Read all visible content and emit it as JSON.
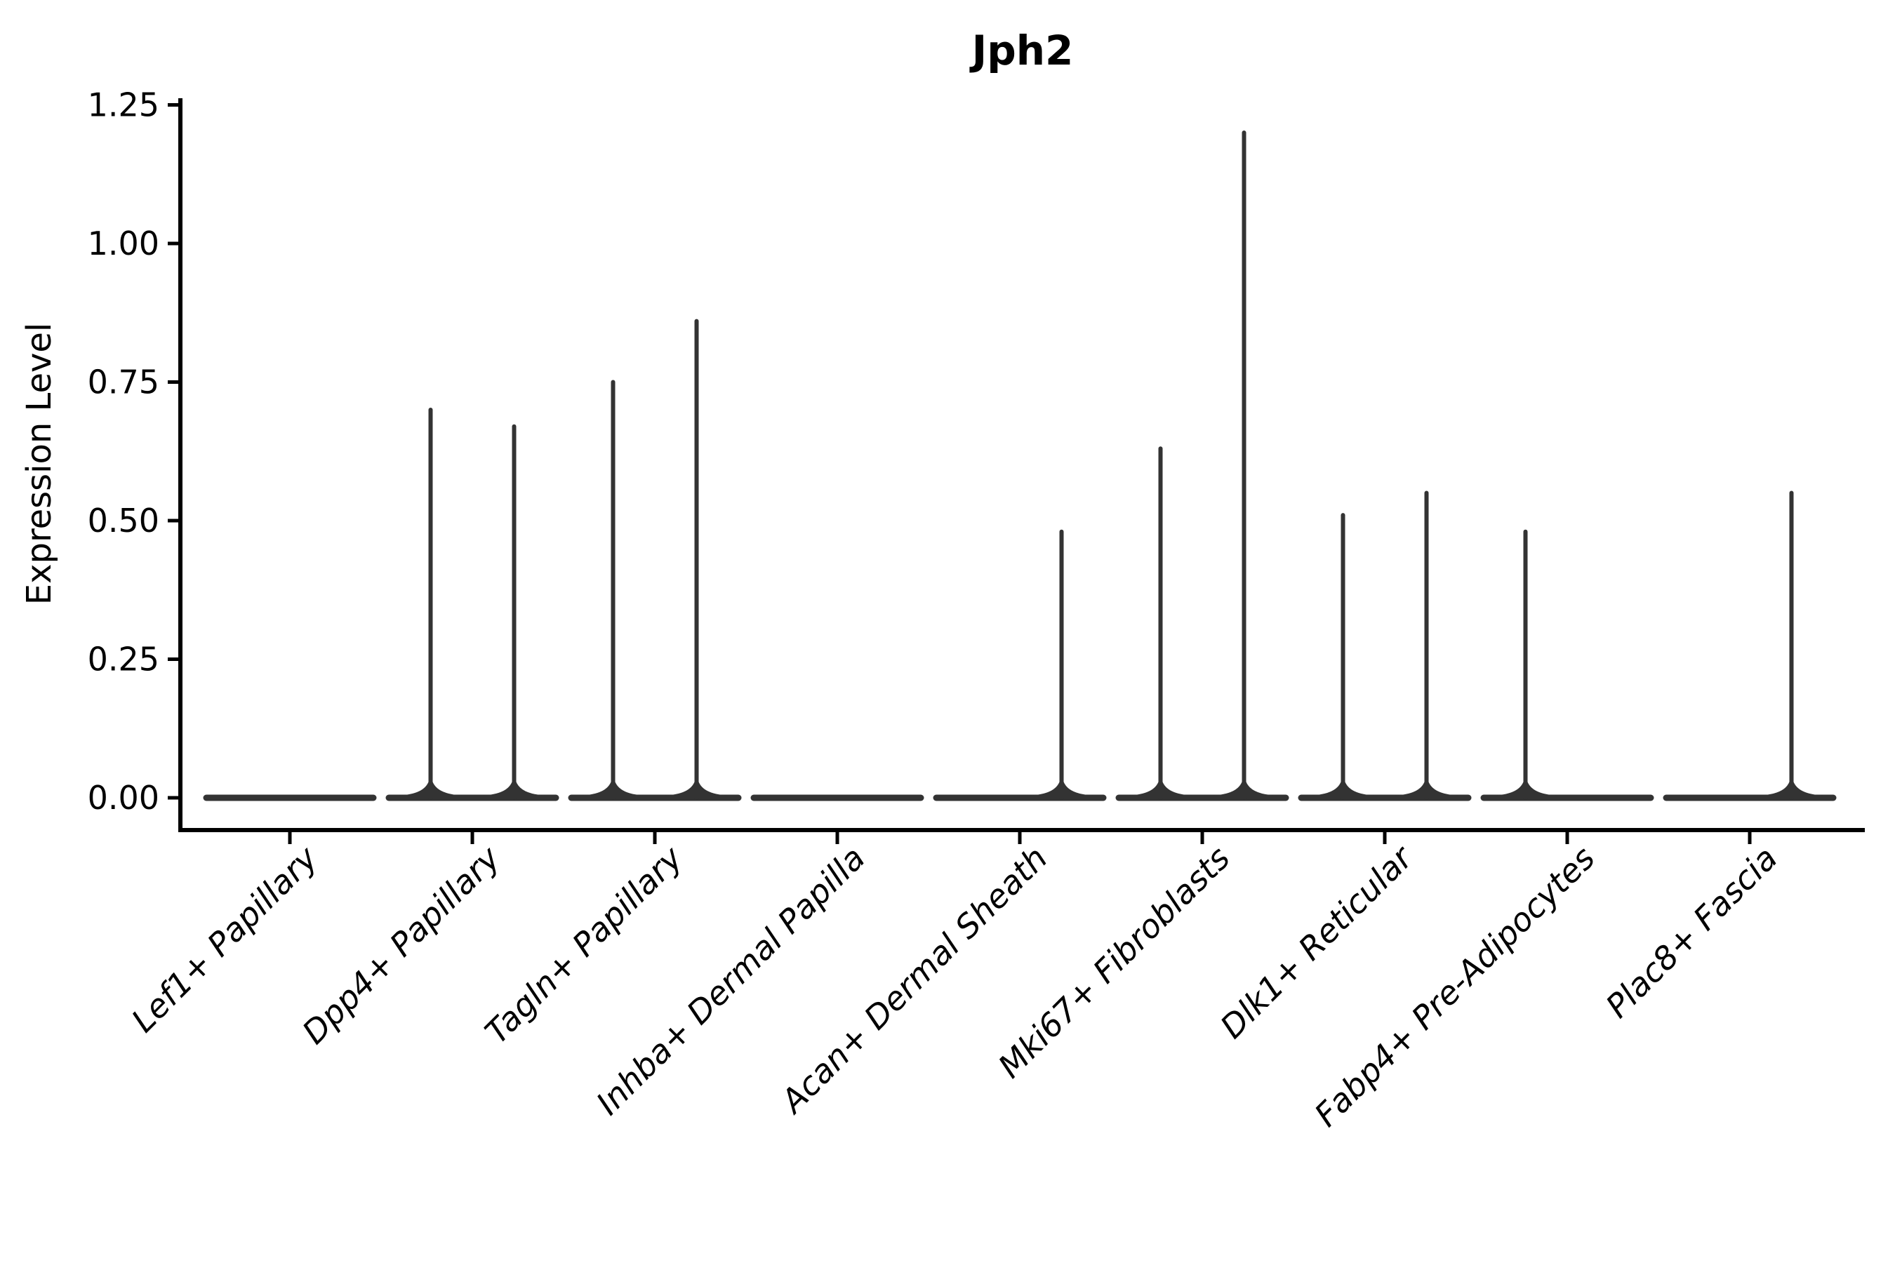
{
  "figure": {
    "title": "Jph2",
    "ylabel": "Expression Level"
  },
  "colors": {
    "background": "#ffffff",
    "axis": "#000000",
    "text": "#000000",
    "violin": "#333333"
  },
  "chart_data": {
    "type": "violin",
    "title": "Jph2",
    "ylabel": "Expression Level",
    "xlabel": "",
    "ylim": [
      0,
      1.25
    ],
    "yticks": [
      0.0,
      0.25,
      0.5,
      0.75,
      1.0,
      1.25
    ],
    "ytick_labels": [
      "0.00",
      "0.25",
      "0.50",
      "0.75",
      "1.00",
      "1.25"
    ],
    "grid": false,
    "legend_position": "none",
    "categories": [
      "Lef1+ Papillary",
      "Dpp4+ Papillary",
      "Tagln+ Papillary",
      "Inhba+ Dermal Papilla",
      "Acan+ Dermal Sheath",
      "Mki67+ Fibroblasts",
      "Dlk1+ Reticular",
      "Fabp4+ Pre-Adipocytes",
      "Plac8+ Fascia"
    ],
    "baseline_value": 0,
    "series": [
      {
        "name": "sub-violin-left",
        "max_values": [
          0,
          0.7,
          0.75,
          0,
          0,
          0.63,
          0.51,
          0.48,
          0
        ]
      },
      {
        "name": "sub-violin-right",
        "max_values": [
          0,
          0.67,
          0.86,
          0,
          0.48,
          1.2,
          0.55,
          0,
          0.55
        ]
      }
    ]
  }
}
